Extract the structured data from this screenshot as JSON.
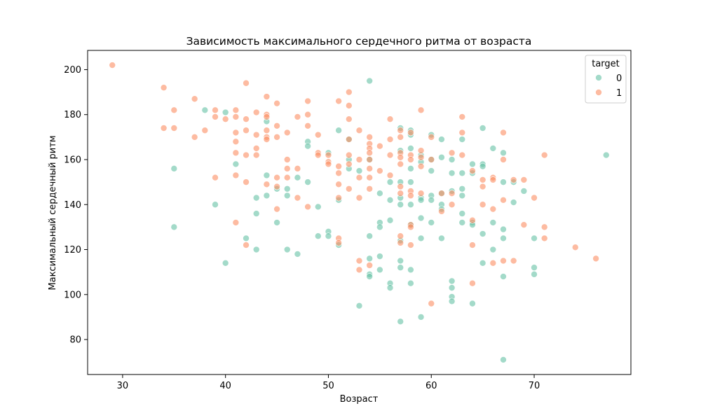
{
  "chart_data": {
    "type": "scatter",
    "title": "Зависимость максимального сердечного ритма от возраста",
    "xlabel": "Возраст",
    "ylabel": "Максимальный сердечный ритм",
    "xlim": [
      26.6,
      79.4
    ],
    "ylim": [
      64.45,
      208.55
    ],
    "xticks": [
      30,
      40,
      50,
      60,
      70
    ],
    "yticks": [
      80,
      100,
      120,
      140,
      160,
      180,
      200
    ],
    "grid": false,
    "legend": {
      "title": "target",
      "placement": "top-right"
    },
    "series": [
      {
        "name": "0",
        "color": "#66c2a5",
        "points": [
          [
            35,
            156
          ],
          [
            35,
            130
          ],
          [
            38,
            182
          ],
          [
            39,
            140
          ],
          [
            40,
            181
          ],
          [
            40,
            114
          ],
          [
            41,
            158
          ],
          [
            42,
            125
          ],
          [
            43,
            143
          ],
          [
            43,
            136
          ],
          [
            43,
            120
          ],
          [
            44,
            177
          ],
          [
            44,
            153
          ],
          [
            44,
            144
          ],
          [
            45,
            147
          ],
          [
            45,
            132
          ],
          [
            46,
            147
          ],
          [
            46,
            144
          ],
          [
            46,
            120
          ],
          [
            47,
            152
          ],
          [
            47,
            118
          ],
          [
            48,
            168
          ],
          [
            48,
            166
          ],
          [
            48,
            150
          ],
          [
            49,
            139
          ],
          [
            49,
            126
          ],
          [
            50,
            163
          ],
          [
            50,
            128
          ],
          [
            50,
            126
          ],
          [
            51,
            173
          ],
          [
            51,
            142
          ],
          [
            51,
            122
          ],
          [
            52,
            169
          ],
          [
            52,
            160
          ],
          [
            52,
            156
          ],
          [
            53,
            155
          ],
          [
            53,
            95
          ],
          [
            54,
            195
          ],
          [
            54,
            160
          ],
          [
            54,
            126
          ],
          [
            54,
            116
          ],
          [
            54,
            109
          ],
          [
            54,
            108
          ],
          [
            55,
            145
          ],
          [
            55,
            132
          ],
          [
            55,
            130
          ],
          [
            55,
            117
          ],
          [
            55,
            111
          ],
          [
            56,
            150
          ],
          [
            56,
            142
          ],
          [
            56,
            133
          ],
          [
            56,
            105
          ],
          [
            56,
            103
          ],
          [
            57,
            174
          ],
          [
            57,
            164
          ],
          [
            57,
            150
          ],
          [
            57,
            143
          ],
          [
            57,
            140
          ],
          [
            57,
            124
          ],
          [
            57,
            115
          ],
          [
            57,
            112
          ],
          [
            57,
            88
          ],
          [
            58,
            173
          ],
          [
            58,
            171
          ],
          [
            58,
            165
          ],
          [
            58,
            156
          ],
          [
            58,
            150
          ],
          [
            58,
            140
          ],
          [
            58,
            131
          ],
          [
            58,
            111
          ],
          [
            58,
            105
          ],
          [
            59,
            162
          ],
          [
            59,
            159
          ],
          [
            59,
            143
          ],
          [
            59,
            142
          ],
          [
            59,
            134
          ],
          [
            59,
            125
          ],
          [
            59,
            90
          ],
          [
            60,
            171
          ],
          [
            60,
            160
          ],
          [
            60,
            155
          ],
          [
            60,
            144
          ],
          [
            60,
            142
          ],
          [
            60,
            132
          ],
          [
            61,
            169
          ],
          [
            61,
            161
          ],
          [
            61,
            145
          ],
          [
            61,
            140
          ],
          [
            61,
            138
          ],
          [
            61,
            125
          ],
          [
            62,
            160
          ],
          [
            62,
            154
          ],
          [
            62,
            146
          ],
          [
            62,
            106
          ],
          [
            62,
            103
          ],
          [
            62,
            99
          ],
          [
            62,
            97
          ],
          [
            63,
            169
          ],
          [
            63,
            154
          ],
          [
            63,
            147
          ],
          [
            63,
            144
          ],
          [
            63,
            136
          ],
          [
            63,
            132
          ],
          [
            64,
            158
          ],
          [
            64,
            154
          ],
          [
            64,
            132
          ],
          [
            64,
            131
          ],
          [
            64,
            96
          ],
          [
            65,
            174
          ],
          [
            65,
            158
          ],
          [
            65,
            157
          ],
          [
            65,
            127
          ],
          [
            65,
            114
          ],
          [
            66,
            165
          ],
          [
            66,
            132
          ],
          [
            66,
            120
          ],
          [
            67,
            163
          ],
          [
            67,
            150
          ],
          [
            67,
            129
          ],
          [
            67,
            125
          ],
          [
            67,
            108
          ],
          [
            67,
            71
          ],
          [
            68,
            150
          ],
          [
            68,
            141
          ],
          [
            69,
            146
          ],
          [
            70,
            125
          ],
          [
            70,
            112
          ],
          [
            70,
            109
          ],
          [
            77,
            162
          ]
        ]
      },
      {
        "name": "1",
        "color": "#fc8d62",
        "points": [
          [
            29,
            202
          ],
          [
            34,
            192
          ],
          [
            34,
            174
          ],
          [
            35,
            182
          ],
          [
            35,
            174
          ],
          [
            37,
            187
          ],
          [
            37,
            170
          ],
          [
            38,
            173
          ],
          [
            39,
            182
          ],
          [
            39,
            179
          ],
          [
            39,
            152
          ],
          [
            40,
            178
          ],
          [
            41,
            182
          ],
          [
            41,
            179
          ],
          [
            41,
            172
          ],
          [
            41,
            168
          ],
          [
            41,
            163
          ],
          [
            41,
            153
          ],
          [
            41,
            132
          ],
          [
            42,
            194
          ],
          [
            42,
            178
          ],
          [
            42,
            173
          ],
          [
            42,
            162
          ],
          [
            42,
            150
          ],
          [
            42,
            122
          ],
          [
            43,
            181
          ],
          [
            43,
            171
          ],
          [
            43,
            165
          ],
          [
            43,
            162
          ],
          [
            44,
            188
          ],
          [
            44,
            180
          ],
          [
            44,
            179
          ],
          [
            44,
            173
          ],
          [
            44,
            170
          ],
          [
            44,
            169
          ],
          [
            44,
            149
          ],
          [
            45,
            185
          ],
          [
            45,
            175
          ],
          [
            45,
            170
          ],
          [
            45,
            152
          ],
          [
            45,
            148
          ],
          [
            45,
            138
          ],
          [
            46,
            172
          ],
          [
            46,
            160
          ],
          [
            46,
            156
          ],
          [
            46,
            152
          ],
          [
            47,
            179
          ],
          [
            47,
            156
          ],
          [
            47,
            143
          ],
          [
            48,
            186
          ],
          [
            48,
            180
          ],
          [
            48,
            175
          ],
          [
            48,
            139
          ],
          [
            49,
            171
          ],
          [
            49,
            163
          ],
          [
            49,
            162
          ],
          [
            50,
            162
          ],
          [
            50,
            159
          ],
          [
            50,
            158
          ],
          [
            51,
            186
          ],
          [
            51,
            157
          ],
          [
            51,
            154
          ],
          [
            51,
            149
          ],
          [
            51,
            143
          ],
          [
            51,
            125
          ],
          [
            51,
            123
          ],
          [
            52,
            190
          ],
          [
            52,
            184
          ],
          [
            52,
            178
          ],
          [
            52,
            169
          ],
          [
            52,
            162
          ],
          [
            52,
            158
          ],
          [
            52,
            147
          ],
          [
            53,
            173
          ],
          [
            53,
            160
          ],
          [
            53,
            152
          ],
          [
            53,
            143
          ],
          [
            53,
            115
          ],
          [
            53,
            111
          ],
          [
            54,
            170
          ],
          [
            54,
            167
          ],
          [
            54,
            165
          ],
          [
            54,
            163
          ],
          [
            54,
            160
          ],
          [
            54,
            156
          ],
          [
            54,
            152
          ],
          [
            54,
            147
          ],
          [
            54,
            113
          ],
          [
            55,
            166
          ],
          [
            55,
            155
          ],
          [
            56,
            178
          ],
          [
            56,
            169
          ],
          [
            56,
            162
          ],
          [
            56,
            153
          ],
          [
            57,
            173
          ],
          [
            57,
            170
          ],
          [
            57,
            163
          ],
          [
            57,
            161
          ],
          [
            57,
            158
          ],
          [
            57,
            148
          ],
          [
            57,
            145
          ],
          [
            57,
            126
          ],
          [
            57,
            123
          ],
          [
            58,
            172
          ],
          [
            58,
            162
          ],
          [
            58,
            160
          ],
          [
            58,
            146
          ],
          [
            58,
            144
          ],
          [
            58,
            131
          ],
          [
            58,
            130
          ],
          [
            58,
            122
          ],
          [
            59,
            182
          ],
          [
            59,
            164
          ],
          [
            59,
            161
          ],
          [
            59,
            157
          ],
          [
            59,
            145
          ],
          [
            60,
            170
          ],
          [
            60,
            160
          ],
          [
            60,
            96
          ],
          [
            61,
            145
          ],
          [
            61,
            137
          ],
          [
            62,
            163
          ],
          [
            62,
            145
          ],
          [
            62,
            140
          ],
          [
            63,
            179
          ],
          [
            63,
            172
          ],
          [
            63,
            162
          ],
          [
            64,
            155
          ],
          [
            64,
            133
          ],
          [
            64,
            122
          ],
          [
            64,
            105
          ],
          [
            65,
            151
          ],
          [
            65,
            148
          ],
          [
            65,
            140
          ],
          [
            66,
            152
          ],
          [
            66,
            151
          ],
          [
            66,
            138
          ],
          [
            66,
            114
          ],
          [
            67,
            172
          ],
          [
            67,
            160
          ],
          [
            67,
            142
          ],
          [
            67,
            115
          ],
          [
            68,
            151
          ],
          [
            68,
            115
          ],
          [
            69,
            151
          ],
          [
            69,
            131
          ],
          [
            70,
            143
          ],
          [
            71,
            162
          ],
          [
            71,
            130
          ],
          [
            71,
            125
          ],
          [
            74,
            121
          ],
          [
            76,
            116
          ]
        ]
      }
    ]
  }
}
